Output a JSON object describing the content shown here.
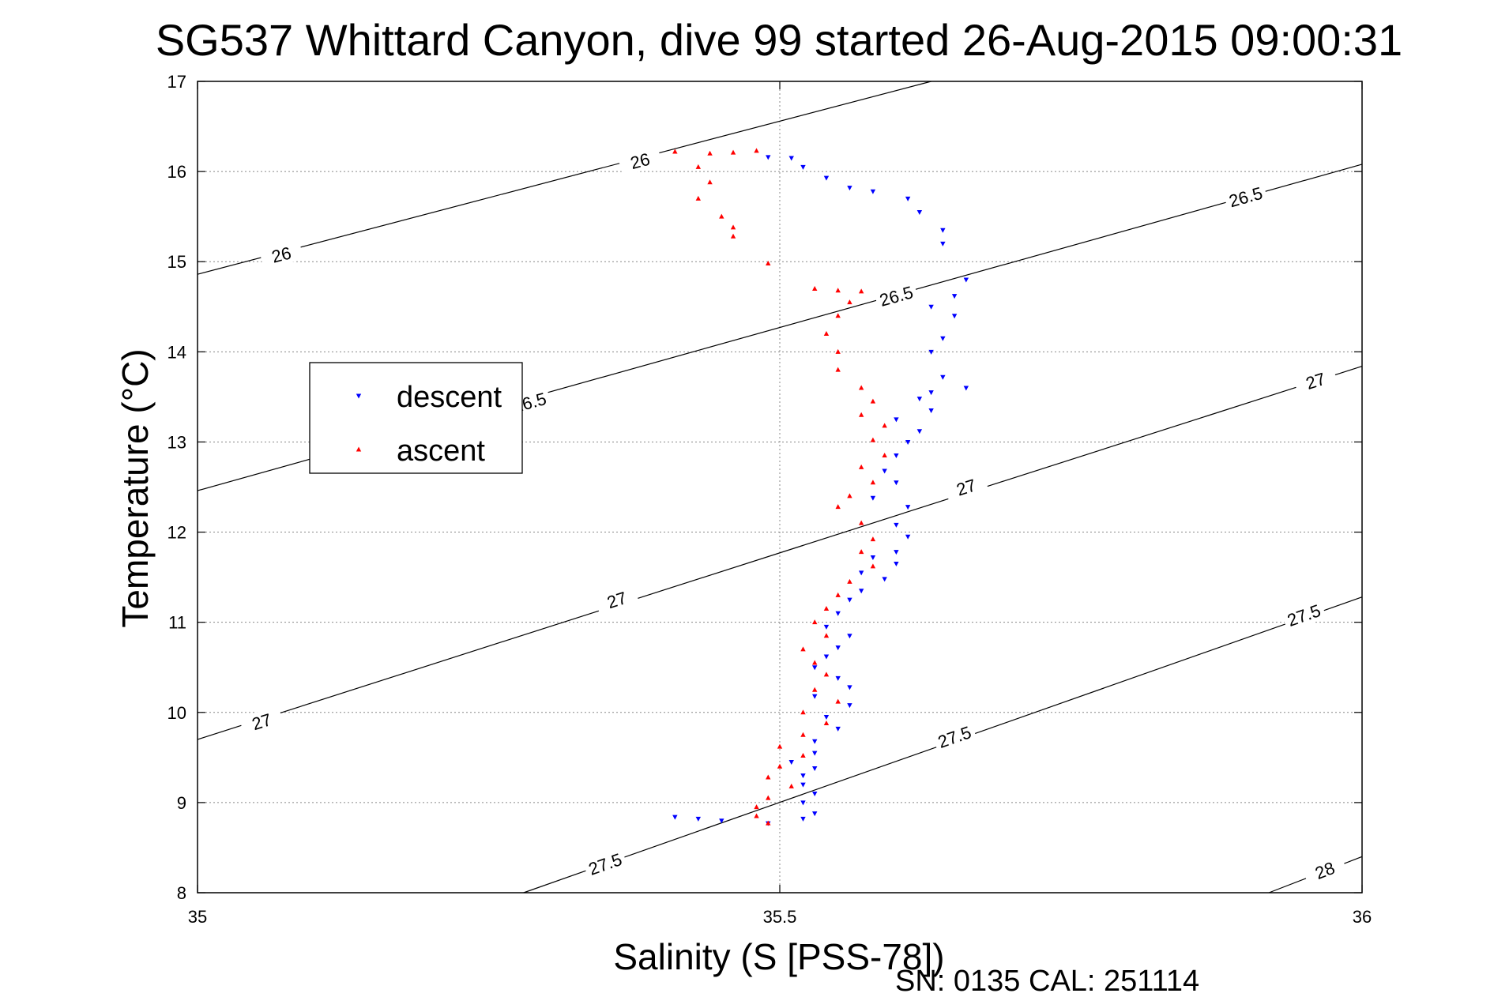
{
  "chart_data": {
    "type": "scatter",
    "title": "SG537 Whittard Canyon, dive 99 started 26-Aug-2015 09:00:31",
    "xlabel": "Salinity (S [PSS-78])",
    "ylabel": "Temperature (°C)",
    "xlim": [
      35,
      36
    ],
    "ylim": [
      8,
      17
    ],
    "xticks": [
      "35",
      "35.5",
      "36"
    ],
    "yticks": [
      "8",
      "9",
      "10",
      "11",
      "12",
      "13",
      "14",
      "15",
      "16",
      "17"
    ],
    "grid": true,
    "legend_position": "left",
    "footer": "SN: 0135  CAL: 251114",
    "colors": {
      "descent": "#0000ff",
      "ascent": "#ff0000",
      "contour": "#000000"
    },
    "series": [
      {
        "name": "descent",
        "marker": "down-triangle",
        "points": [
          [
            35.49,
            16.16
          ],
          [
            35.51,
            16.15
          ],
          [
            35.52,
            16.05
          ],
          [
            35.54,
            15.93
          ],
          [
            35.56,
            15.82
          ],
          [
            35.58,
            15.78
          ],
          [
            35.61,
            15.7
          ],
          [
            35.62,
            15.55
          ],
          [
            35.64,
            15.35
          ],
          [
            35.64,
            15.2
          ],
          [
            35.66,
            14.8
          ],
          [
            35.65,
            14.62
          ],
          [
            35.63,
            14.5
          ],
          [
            35.65,
            14.4
          ],
          [
            35.64,
            14.15
          ],
          [
            35.63,
            14.0
          ],
          [
            35.64,
            13.72
          ],
          [
            35.66,
            13.6
          ],
          [
            35.63,
            13.55
          ],
          [
            35.62,
            13.48
          ],
          [
            35.63,
            13.35
          ],
          [
            35.6,
            13.25
          ],
          [
            35.62,
            13.12
          ],
          [
            35.61,
            13.0
          ],
          [
            35.6,
            12.85
          ],
          [
            35.59,
            12.68
          ],
          [
            35.6,
            12.55
          ],
          [
            35.58,
            12.38
          ],
          [
            35.61,
            12.28
          ],
          [
            35.6,
            12.08
          ],
          [
            35.61,
            11.95
          ],
          [
            35.6,
            11.78
          ],
          [
            35.58,
            11.72
          ],
          [
            35.6,
            11.65
          ],
          [
            35.57,
            11.55
          ],
          [
            35.59,
            11.48
          ],
          [
            35.57,
            11.35
          ],
          [
            35.56,
            11.25
          ],
          [
            35.55,
            11.1
          ],
          [
            35.54,
            10.95
          ],
          [
            35.56,
            10.85
          ],
          [
            35.55,
            10.72
          ],
          [
            35.54,
            10.62
          ],
          [
            35.53,
            10.5
          ],
          [
            35.55,
            10.38
          ],
          [
            35.56,
            10.28
          ],
          [
            35.53,
            10.18
          ],
          [
            35.56,
            10.08
          ],
          [
            35.54,
            9.95
          ],
          [
            35.55,
            9.82
          ],
          [
            35.53,
            9.68
          ],
          [
            35.53,
            9.55
          ],
          [
            35.51,
            9.45
          ],
          [
            35.53,
            9.38
          ],
          [
            35.52,
            9.3
          ],
          [
            35.52,
            9.2
          ],
          [
            35.53,
            9.1
          ],
          [
            35.52,
            9.0
          ],
          [
            35.53,
            8.88
          ],
          [
            35.52,
            8.82
          ],
          [
            35.49,
            8.77
          ],
          [
            35.45,
            8.8
          ],
          [
            35.43,
            8.82
          ],
          [
            35.41,
            8.84
          ]
        ]
      },
      {
        "name": "ascent",
        "marker": "up-triangle",
        "points": [
          [
            35.41,
            16.22
          ],
          [
            35.44,
            16.2
          ],
          [
            35.46,
            16.21
          ],
          [
            35.48,
            16.23
          ],
          [
            35.43,
            16.05
          ],
          [
            35.44,
            15.88
          ],
          [
            35.43,
            15.7
          ],
          [
            35.45,
            15.5
          ],
          [
            35.46,
            15.38
          ],
          [
            35.46,
            15.28
          ],
          [
            35.49,
            14.98
          ],
          [
            35.53,
            14.7
          ],
          [
            35.55,
            14.68
          ],
          [
            35.57,
            14.67
          ],
          [
            35.56,
            14.55
          ],
          [
            35.55,
            14.4
          ],
          [
            35.54,
            14.2
          ],
          [
            35.55,
            14.0
          ],
          [
            35.55,
            13.8
          ],
          [
            35.57,
            13.6
          ],
          [
            35.58,
            13.45
          ],
          [
            35.57,
            13.3
          ],
          [
            35.59,
            13.18
          ],
          [
            35.58,
            13.02
          ],
          [
            35.59,
            12.85
          ],
          [
            35.57,
            12.72
          ],
          [
            35.58,
            12.55
          ],
          [
            35.56,
            12.4
          ],
          [
            35.55,
            12.28
          ],
          [
            35.57,
            12.1
          ],
          [
            35.58,
            11.92
          ],
          [
            35.57,
            11.78
          ],
          [
            35.58,
            11.62
          ],
          [
            35.56,
            11.45
          ],
          [
            35.55,
            11.3
          ],
          [
            35.54,
            11.15
          ],
          [
            35.53,
            11.0
          ],
          [
            35.54,
            10.85
          ],
          [
            35.52,
            10.7
          ],
          [
            35.53,
            10.55
          ],
          [
            35.54,
            10.42
          ],
          [
            35.53,
            10.25
          ],
          [
            35.55,
            10.12
          ],
          [
            35.52,
            10.0
          ],
          [
            35.54,
            9.88
          ],
          [
            35.52,
            9.75
          ],
          [
            35.5,
            9.62
          ],
          [
            35.52,
            9.52
          ],
          [
            35.5,
            9.4
          ],
          [
            35.49,
            9.28
          ],
          [
            35.51,
            9.18
          ],
          [
            35.49,
            9.05
          ],
          [
            35.48,
            8.95
          ],
          [
            35.48,
            8.85
          ],
          [
            35.49,
            8.77
          ]
        ]
      }
    ],
    "contours": [
      {
        "label": "26",
        "endpoints": [
          [
            35,
            14.86
          ],
          [
            35.63,
            17.0
          ]
        ],
        "labels_at": [
          [
            35.072,
            15.08
          ],
          [
            35.38,
            16.12
          ]
        ]
      },
      {
        "label": "26.5",
        "endpoints": [
          [
            35,
            12.46
          ],
          [
            36,
            16.08
          ]
        ],
        "labels_at": [
          [
            35.285,
            13.44
          ],
          [
            35.6,
            14.62
          ],
          [
            35.9,
            15.72
          ]
        ]
      },
      {
        "label": "27",
        "endpoints": [
          [
            35,
            9.7
          ],
          [
            36,
            13.84
          ]
        ],
        "labels_at": [
          [
            35.055,
            9.9
          ],
          [
            35.36,
            11.25
          ],
          [
            35.66,
            12.5
          ],
          [
            35.96,
            13.68
          ]
        ]
      },
      {
        "label": "27.5",
        "endpoints": [
          [
            35.28,
            8.0
          ],
          [
            36,
            11.28
          ]
        ],
        "labels_at": [
          [
            35.35,
            8.32
          ],
          [
            35.65,
            9.73
          ],
          [
            35.95,
            11.08
          ]
        ]
      },
      {
        "label": "28",
        "endpoints": [
          [
            35.92,
            8.0
          ],
          [
            36,
            8.4
          ]
        ],
        "labels_at": [
          [
            35.968,
            8.25
          ]
        ]
      }
    ]
  }
}
